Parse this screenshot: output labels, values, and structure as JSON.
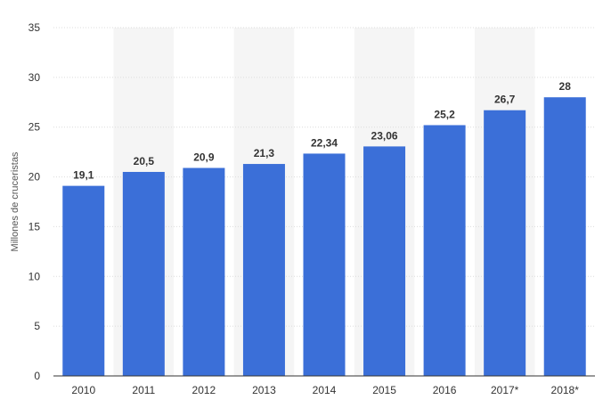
{
  "chart_data": {
    "type": "bar",
    "categories": [
      "2010",
      "2011",
      "2012",
      "2013",
      "2014",
      "2015",
      "2016",
      "2017*",
      "2018*"
    ],
    "values": [
      19.1,
      20.5,
      20.9,
      21.3,
      22.34,
      23.06,
      25.2,
      26.7,
      28
    ],
    "value_labels": [
      "19,1",
      "20,5",
      "20,9",
      "21,3",
      "22,34",
      "23,06",
      "25,2",
      "26,7",
      "28"
    ],
    "ylabel": "Millones de cruceristas",
    "xlabel": "",
    "ylim": [
      0,
      35
    ],
    "yticks": [
      0,
      5,
      10,
      15,
      20,
      25,
      30,
      35
    ],
    "grid": true,
    "bar_color": "#3b6fd8",
    "band_color": "#f5f5f5"
  }
}
